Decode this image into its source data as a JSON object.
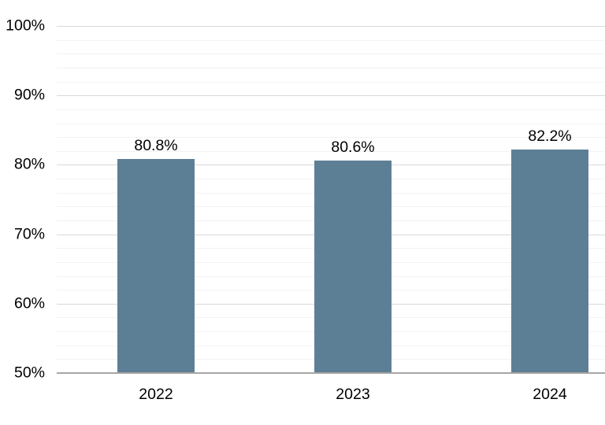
{
  "chart_data": {
    "type": "bar",
    "title": "",
    "xlabel": "",
    "ylabel": "",
    "categories": [
      "2022",
      "2023",
      "2024"
    ],
    "values": [
      80.8,
      80.6,
      82.2
    ],
    "value_labels": [
      "80.8%",
      "80.6%",
      "82.2%"
    ],
    "ylim": [
      50,
      100
    ],
    "y_major_step": 10,
    "y_minor_step": 2,
    "y_tick_labels": [
      "50%",
      "60%",
      "70%",
      "80%",
      "90%",
      "100%"
    ],
    "grid": "on",
    "legend": "none",
    "colors": {
      "bar": "#5d7f95",
      "major_grid": "#d9d9d9",
      "minor_grid": "#f2f2f2",
      "axis_line": "#a6a6a6",
      "text": "#000000",
      "background": "#ffffff"
    }
  }
}
